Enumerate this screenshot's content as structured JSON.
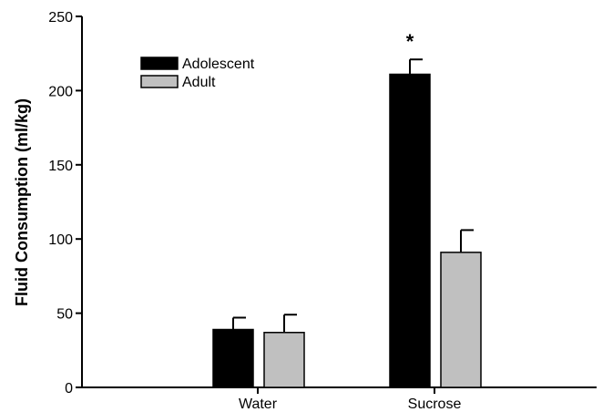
{
  "chart_data": {
    "type": "bar",
    "title": "",
    "xlabel": "",
    "ylabel": "Fluid Consumption (ml/kg)",
    "categories": [
      "Water",
      "Sucrose"
    ],
    "series": [
      {
        "name": "Adolescent",
        "color": "#000000",
        "values": [
          39,
          211
        ],
        "errors": [
          8,
          10
        ]
      },
      {
        "name": "Adult",
        "color": "#c0c0c0",
        "values": [
          37,
          91
        ],
        "errors": [
          12,
          15
        ]
      }
    ],
    "ylim": [
      0,
      250
    ],
    "yticks": [
      0,
      50,
      100,
      150,
      200,
      250
    ],
    "grid": false,
    "legend_position": "top-left",
    "annotations": [
      {
        "text": "*",
        "category": "Sucrose",
        "series": "Adolescent"
      }
    ]
  }
}
